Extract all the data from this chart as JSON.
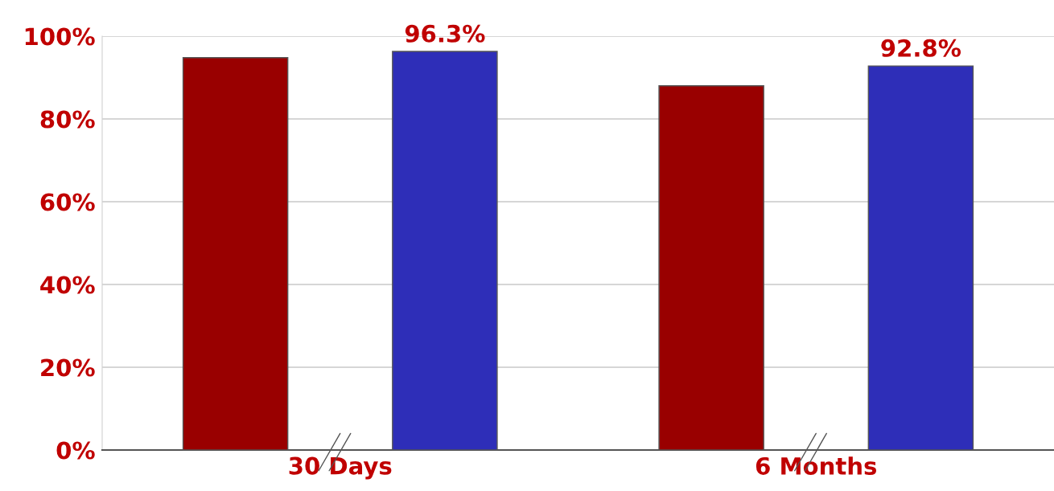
{
  "chart_data": {
    "type": "bar",
    "categories": [
      "30 Days",
      "6 Months"
    ],
    "series": [
      {
        "color": "#990000",
        "values": [
          94.8,
          88.0
        ],
        "value_labels": [
          null,
          null
        ]
      },
      {
        "color": "#2e2eb8",
        "values": [
          96.3,
          92.8
        ],
        "value_labels": [
          "96.3%",
          "92.8%"
        ]
      }
    ],
    "ylim": [
      0,
      100
    ],
    "yticks": [
      {
        "value": 0,
        "label": "0%"
      },
      {
        "value": 20,
        "label": "20%"
      },
      {
        "value": 40,
        "label": "40%"
      },
      {
        "value": 60,
        "label": "60%"
      },
      {
        "value": 80,
        "label": "80%"
      },
      {
        "value": 100,
        "label": "100%"
      }
    ],
    "grid": "y",
    "legend": false
  }
}
